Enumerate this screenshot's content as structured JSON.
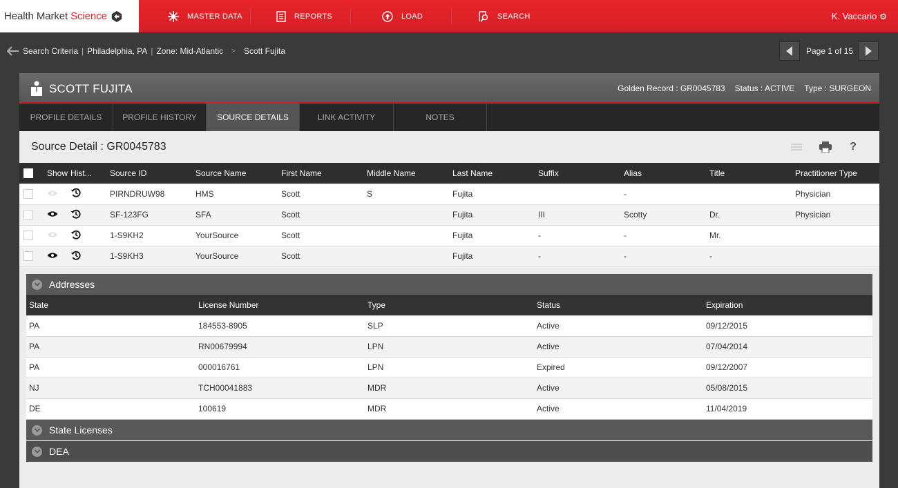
{
  "app": {
    "logo_main": "Health Market ",
    "logo_accent": "Science",
    "brand_color": "#e8242b"
  },
  "nav": [
    {
      "label": "MASTER DATA",
      "icon": "burst-icon"
    },
    {
      "label": "REPORTS",
      "icon": "document-icon"
    },
    {
      "label": "LOAD",
      "icon": "upload-icon"
    },
    {
      "label": "SEARCH",
      "icon": "search-icon"
    }
  ],
  "user": {
    "name": "K. Vaccario"
  },
  "breadcrumb": {
    "root": "Search Criteria",
    "location": "Philadelphia, PA",
    "zone": "Zone: Mid-Atlantic",
    "current": "Scott Fujita"
  },
  "pager": {
    "label": "Page 1 of 15"
  },
  "record": {
    "name": "SCOTT FUJITA",
    "golden_record": "Golden Record : GR0045783",
    "status": "Status : ACTIVE",
    "type": "Type : SURGEON"
  },
  "tabs": [
    "PROFILE DETAILS",
    "PROFILE HISTORY",
    "SOURCE DETAILS",
    "LINK ACTIVITY",
    "NOTES"
  ],
  "source_detail": {
    "title": "Source Detail : GR0045783",
    "columns": [
      "Show",
      "Hist...",
      "Source ID",
      "Source Name",
      "First Name",
      "Middle Name",
      "Last Name",
      "Suffix",
      "Alias",
      "Title",
      "Practitioner Type"
    ],
    "rows": [
      {
        "show": "hidden",
        "source_id": "PIRNDRUW98",
        "source_name": "HMS",
        "first": "Scott",
        "middle": "S",
        "last": "Fujita",
        "suffix": "",
        "alias": "-",
        "title": "",
        "ptype": "Physician"
      },
      {
        "show": "visible",
        "source_id": "SF-123FG",
        "source_name": "SFA",
        "first": "Scott",
        "middle": "",
        "last": "Fujita",
        "suffix": "III",
        "alias": "Scotty",
        "title": "Dr.",
        "ptype": "Physician"
      },
      {
        "show": "hidden",
        "source_id": "1-S9KH2",
        "source_name": "YourSource",
        "first": "Scott",
        "middle": "",
        "last": "Fujita",
        "suffix": "-",
        "alias": "-",
        "title": "Mr.",
        "ptype": ""
      },
      {
        "show": "visible",
        "source_id": "1-S9KH3",
        "source_name": "YourSource",
        "first": "Scott",
        "middle": "",
        "last": "Fujita",
        "suffix": "-",
        "alias": "-",
        "title": "-",
        "ptype": ""
      }
    ]
  },
  "sections": {
    "addresses": "Addresses",
    "state_licenses": "State Licenses",
    "dea": "DEA"
  },
  "licenses": {
    "columns": [
      "State",
      "License Number",
      "Type",
      "Status",
      "Expiration"
    ],
    "rows": [
      [
        "PA",
        "184553-8905",
        "SLP",
        "Active",
        "09/12/2015"
      ],
      [
        "PA",
        "RN00679994",
        "LPN",
        "Active",
        "07/04/2014"
      ],
      [
        "PA",
        "000016761",
        "LPN",
        "Expired",
        "09/12/2007"
      ],
      [
        "NJ",
        "TCH00041883",
        "MDR",
        "Active",
        "05/08/2015"
      ],
      [
        "DE",
        "100619",
        "MDR",
        "Active",
        "11/04/2019"
      ]
    ]
  }
}
